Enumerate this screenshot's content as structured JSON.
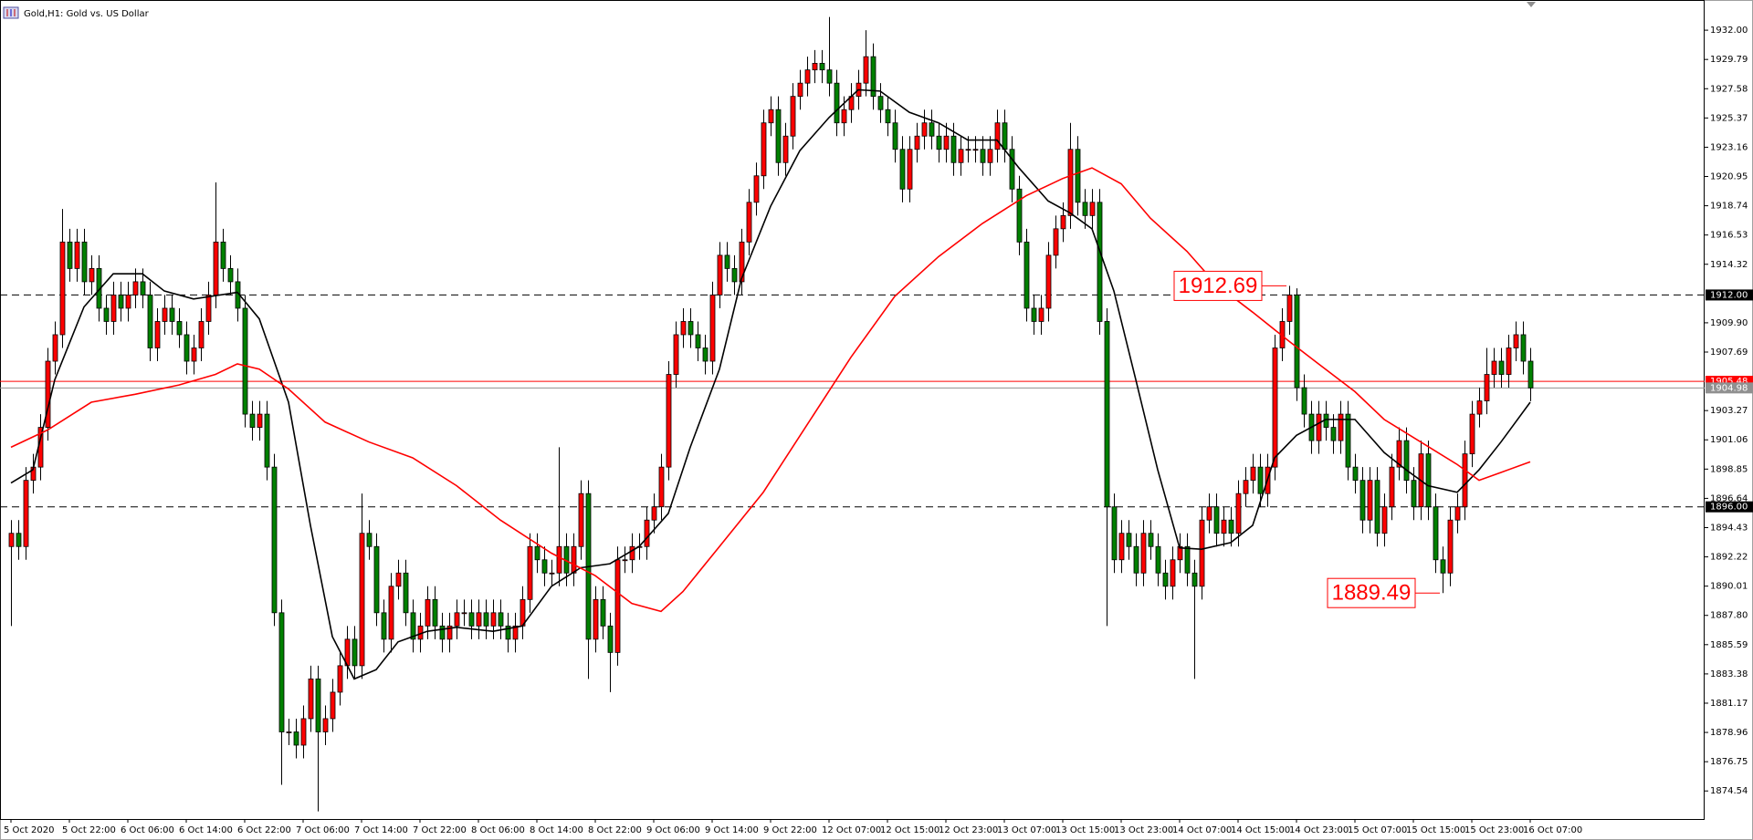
{
  "chart_data": {
    "type": "candlestick",
    "title": "Gold,H1:  Gold vs. US Dollar",
    "categories": [
      "5 Oct 2020",
      null,
      null,
      null,
      null,
      null,
      null,
      null,
      "5 Oct 22:00",
      null,
      null,
      null,
      null,
      null,
      null,
      null,
      "6 Oct 06:00",
      null,
      null,
      null,
      null,
      null,
      null,
      null,
      "6 Oct 14:00",
      null,
      null,
      null,
      null,
      null,
      null,
      null,
      "6 Oct 22:00",
      null,
      null,
      null,
      null,
      null,
      null,
      null,
      "7 Oct 06:00",
      null,
      null,
      null,
      null,
      null,
      null,
      null,
      "7 Oct 14:00",
      null,
      null,
      null,
      null,
      null,
      null,
      null,
      "7 Oct 22:00",
      null,
      null,
      null,
      null,
      null,
      null,
      null,
      "8 Oct 06:00",
      null,
      null,
      null,
      null,
      null,
      null,
      null,
      "8 Oct 14:00",
      null,
      null,
      null,
      null,
      null,
      null,
      null,
      "8 Oct 22:00",
      null,
      null,
      null,
      null,
      null,
      null,
      null,
      "9 Oct 06:00",
      null,
      null,
      null,
      null,
      null,
      null,
      null,
      "9 Oct 14:00",
      null,
      null,
      null,
      null,
      null,
      null,
      null,
      "9 Oct 22:00",
      null,
      null,
      null,
      null,
      null,
      null,
      null,
      "12 Oct 07:00",
      null,
      null,
      null,
      null,
      null,
      null,
      null,
      "12 Oct 15:00",
      null,
      null,
      null,
      null,
      null,
      null,
      null,
      "12 Oct 23:00",
      null,
      null,
      null,
      null,
      null,
      null,
      null,
      "13 Oct 07:00",
      null,
      null,
      null,
      null,
      null,
      null,
      null,
      "13 Oct 15:00",
      null,
      null,
      null,
      null,
      null,
      null,
      null,
      "13 Oct 23:00",
      null,
      null,
      null,
      null,
      null,
      null,
      null,
      "14 Oct 07:00",
      null,
      null,
      null,
      null,
      null,
      null,
      null,
      "14 Oct 15:00",
      null,
      null,
      null,
      null,
      null,
      null,
      null,
      "14 Oct 23:00",
      null,
      null,
      null,
      null,
      null,
      null,
      null,
      "15 Oct 07:00",
      null,
      null,
      null,
      null,
      null,
      null,
      null,
      "15 Oct 15:00",
      null,
      null,
      null,
      null,
      null,
      null,
      null,
      "15 Oct 23:00",
      null,
      null,
      null,
      null,
      null,
      null,
      null,
      "16 Oct 07:00"
    ],
    "open": [
      1893,
      1894,
      1893,
      1898,
      1899,
      1902,
      1907,
      1909,
      1916,
      1914,
      1916,
      1913,
      1914,
      1911,
      1910,
      1912,
      1911,
      1912,
      1913,
      1912,
      1908,
      1910,
      1911,
      1910,
      1909,
      1907,
      1908,
      1910,
      1912,
      1916,
      1914,
      1913,
      1911,
      1903,
      1902,
      1903,
      1899,
      1888,
      1879,
      1879,
      1878,
      1880,
      1883,
      1879,
      1880,
      1882,
      1884,
      1886,
      1884,
      1894,
      1893,
      1888,
      1886,
      1890,
      1891,
      1888,
      1886,
      1887,
      1889,
      1887,
      1886,
      1887,
      1888,
      1888,
      1887,
      1888,
      1887,
      1888,
      1887,
      1886,
      1887,
      1889,
      1893,
      1892,
      1891,
      1891,
      1893,
      1891,
      1893,
      1897,
      1886,
      1889,
      1887,
      1885,
      1892,
      1892,
      1893,
      1893,
      1895,
      1896,
      1899,
      1906,
      1909,
      1910,
      1909,
      1908,
      1907,
      1912,
      1915,
      1914,
      1913,
      1916,
      1919,
      1921,
      1925,
      1926,
      1922,
      1924,
      1927,
      1928,
      1929,
      1929.5,
      1929,
      1928,
      1925,
      1926,
      1927,
      1928,
      1930,
      1927,
      1926,
      1925,
      1923,
      1920,
      1923,
      1924,
      1925,
      1924,
      1923,
      1924,
      1922,
      1923,
      1923,
      1923,
      1922,
      1923,
      1925,
      1923,
      1920,
      1916,
      1911,
      1910,
      1911,
      1915,
      1917,
      1918,
      1923,
      1919,
      1918,
      1919,
      1910,
      1896,
      1892,
      1894,
      1893,
      1891,
      1894,
      1893,
      1891,
      1890,
      1892,
      1893,
      1891,
      1890,
      1895,
      1896,
      1894,
      1895,
      1894,
      1897,
      1898,
      1899,
      1897,
      1899,
      1908,
      1910,
      1912,
      1905,
      1903,
      1901,
      1903,
      1902,
      1901,
      1903,
      1899,
      1898,
      1895,
      1898,
      1894,
      1896,
      1899,
      1901,
      1898,
      1896,
      1900,
      1896,
      1892,
      1891,
      1895,
      1896,
      1900,
      1903,
      1904,
      1906,
      1907,
      1906,
      1908,
      1909,
      1907
    ],
    "high": [
      1895,
      1895,
      1899,
      1900,
      1903,
      1908,
      1910,
      1918.5,
      1917,
      1917,
      1917,
      1915,
      1915,
      1912,
      1913,
      1913,
      1913,
      1914,
      1914,
      1913,
      1911,
      1912,
      1912,
      1911,
      1910,
      1909,
      1911,
      1913,
      1920.5,
      1917,
      1915,
      1914,
      1912,
      1904,
      1904,
      1904,
      1900,
      1889,
      1880,
      1880,
      1881,
      1884,
      1884,
      1881,
      1883,
      1885,
      1887,
      1887,
      1897,
      1895,
      1894,
      1889,
      1891,
      1892,
      1892,
      1889,
      1888,
      1890,
      1890,
      1888,
      1888,
      1889,
      1889,
      1889,
      1889,
      1889,
      1889,
      1889,
      1888,
      1888,
      1890,
      1894,
      1894,
      1893,
      1892,
      1900.5,
      1894,
      1894,
      1898,
      1898,
      1890,
      1890,
      1888,
      1893,
      1893,
      1894,
      1894,
      1896,
      1897,
      1900,
      1907,
      1910,
      1911,
      1911,
      1910,
      1909,
      1913,
      1916,
      1916,
      1915,
      1917,
      1920,
      1922,
      1926,
      1927,
      1927,
      1925,
      1928,
      1929,
      1930,
      1930.5,
      1930.5,
      1933,
      1929,
      1927,
      1928,
      1929,
      1932,
      1931,
      1928,
      1927,
      1926,
      1924,
      1924,
      1925,
      1926,
      1926,
      1925,
      1925,
      1925,
      1924,
      1924,
      1924,
      1924,
      1924,
      1926,
      1926,
      1924,
      1921,
      1917,
      1912,
      1912,
      1916,
      1918,
      1919,
      1925,
      1924,
      1920,
      1920,
      1920,
      1911,
      1897,
      1895,
      1895,
      1894,
      1895,
      1895,
      1894,
      1892,
      1893,
      1894,
      1894,
      1892,
      1896,
      1897,
      1897,
      1896,
      1896,
      1898,
      1899,
      1900,
      1900,
      1900,
      1909,
      1911,
      1912.69,
      1912.5,
      1906,
      1904,
      1904,
      1904,
      1903,
      1904,
      1904,
      1900,
      1899,
      1899,
      1899,
      1897,
      1900,
      1902,
      1902,
      1899,
      1901,
      1901,
      1897,
      1893,
      1896,
      1897,
      1901,
      1904,
      1905,
      1908,
      1908,
      1908,
      1909,
      1910,
      1910,
      1908
    ],
    "low": [
      1887,
      1892,
      1892,
      1897,
      1898,
      1901,
      1906,
      1908,
      1913,
      1913,
      1912,
      1912,
      1910,
      1909,
      1909,
      1910,
      1910,
      1911,
      1911,
      1907,
      1907,
      1909,
      1909,
      1908,
      1906,
      1906,
      1907,
      1909,
      1911,
      1913,
      1912,
      1910,
      1902,
      1901,
      1901,
      1898,
      1887,
      1875,
      1878,
      1877,
      1877,
      1879,
      1873,
      1878,
      1879,
      1881,
      1883,
      1883,
      1883,
      1892,
      1887,
      1885,
      1885,
      1889,
      1887,
      1885,
      1885,
      1886,
      1886,
      1885,
      1885,
      1886,
      1887,
      1886,
      1886,
      1886,
      1886,
      1886,
      1885,
      1885,
      1886,
      1888,
      1891,
      1890,
      1890,
      1890,
      1890,
      1890,
      1892,
      1883,
      1885,
      1886,
      1882,
      1884,
      1891,
      1891,
      1892,
      1892,
      1894,
      1895,
      1898,
      1905,
      1908,
      1908,
      1907,
      1906,
      1906,
      1911,
      1913,
      1912,
      1912,
      1915,
      1918,
      1920,
      1924,
      1921,
      1921,
      1923,
      1926,
      1927,
      1928,
      1928,
      1927,
      1924,
      1924,
      1925,
      1926,
      1927,
      1926,
      1925,
      1924,
      1922,
      1919,
      1919,
      1922,
      1923,
      1923,
      1922,
      1922,
      1921,
      1921,
      1922,
      1922,
      1921,
      1921,
      1922,
      1922,
      1919,
      1915,
      1910,
      1909,
      1909,
      1910,
      1914,
      1916,
      1917,
      1918,
      1917,
      1917,
      1909,
      1887,
      1891,
      1891,
      1892,
      1890,
      1890,
      1892,
      1890,
      1889,
      1889,
      1891,
      1890,
      1883,
      1889,
      1894,
      1893,
      1893,
      1893,
      1893,
      1896,
      1897,
      1896,
      1896,
      1898,
      1907,
      1909,
      1904,
      1902,
      1900,
      1900,
      1901,
      1900,
      1900,
      1898,
      1897,
      1894,
      1894,
      1893,
      1893,
      1895,
      1898,
      1897,
      1895,
      1895,
      1895,
      1891,
      1889.49,
      1890,
      1894,
      1895,
      1899,
      1902,
      1903,
      1905,
      1905,
      1905,
      1907,
      1906,
      1903.98
    ],
    "close": [
      1894,
      1893,
      1898,
      1899,
      1902,
      1907,
      1909,
      1916,
      1914,
      1916,
      1913,
      1914,
      1911,
      1910,
      1912,
      1911,
      1912,
      1913,
      1912,
      1908,
      1910,
      1911,
      1910,
      1909,
      1907,
      1908,
      1910,
      1912,
      1916,
      1914,
      1913,
      1911,
      1903,
      1902,
      1903,
      1899,
      1888,
      1879,
      1879,
      1878,
      1880,
      1883,
      1879,
      1880,
      1882,
      1884,
      1886,
      1884,
      1894,
      1893,
      1888,
      1886,
      1890,
      1891,
      1888,
      1886,
      1887,
      1889,
      1887,
      1886,
      1887,
      1888,
      1888,
      1887,
      1888,
      1887,
      1888,
      1887,
      1886,
      1887,
      1889,
      1893,
      1892,
      1891,
      1891,
      1893,
      1891,
      1893,
      1897,
      1886,
      1889,
      1887,
      1885,
      1892,
      1892,
      1893,
      1893,
      1895,
      1896,
      1899,
      1906,
      1909,
      1910,
      1909,
      1908,
      1907,
      1912,
      1915,
      1914,
      1913,
      1916,
      1919,
      1921,
      1925,
      1926,
      1922,
      1924,
      1927,
      1928,
      1929,
      1929.5,
      1929,
      1928,
      1925,
      1926,
      1927,
      1928,
      1930,
      1927,
      1926,
      1925,
      1923,
      1920,
      1923,
      1924,
      1925,
      1924,
      1923,
      1924,
      1922,
      1923,
      1923,
      1923,
      1922,
      1923,
      1925,
      1923,
      1920,
      1916,
      1911,
      1910,
      1911,
      1915,
      1917,
      1918,
      1923,
      1919,
      1918,
      1919,
      1910,
      1896,
      1892,
      1894,
      1893,
      1891,
      1894,
      1893,
      1891,
      1890,
      1892,
      1893,
      1891,
      1890,
      1895,
      1896,
      1894,
      1895,
      1894,
      1897,
      1898,
      1899,
      1897,
      1899,
      1908,
      1910,
      1912,
      1905,
      1903,
      1901,
      1903,
      1902,
      1901,
      1903,
      1899,
      1898,
      1895,
      1898,
      1894,
      1896,
      1899,
      1901,
      1898,
      1896,
      1900,
      1896,
      1892,
      1891,
      1895,
      1896,
      1900,
      1903,
      1904,
      1906,
      1907,
      1906,
      1908,
      1909,
      1907,
      1904.98
    ],
    "up_color": "#ff0000",
    "down_color": "#008000",
    "ylim": [
      1872.42,
      1934.28
    ],
    "yticks": [
      {
        "value": 1932,
        "label": "1932.00"
      },
      1929.79,
      1927.58,
      1925.37,
      1923.16,
      1920.95,
      1918.74,
      1916.53,
      1914.32,
      {
        "value": 1909.9,
        "label": "1909.90"
      },
      1907.69,
      1903.27,
      1901.06,
      1898.85,
      1896.64,
      1894.43,
      1892.22,
      1890.01,
      {
        "value": 1887.8,
        "label": "1887.80"
      },
      1885.59,
      1883.38,
      1881.17,
      1878.96,
      1876.75,
      1874.54
    ],
    "grid": false,
    "lines": [
      {
        "color": "#000000",
        "x": [
          0,
          3,
          6,
          10,
          14,
          18,
          21,
          25,
          31,
          34,
          38,
          41,
          44,
          47,
          50,
          53,
          57,
          61,
          66,
          70,
          74,
          78,
          82,
          86,
          90,
          93,
          97,
          100,
          104,
          108,
          112,
          116,
          119,
          123,
          127,
          131,
          135,
          138,
          142,
          145,
          148,
          151,
          154,
          157,
          160,
          163,
          167,
          170,
          173,
          176,
          180,
          184,
          188,
          191,
          194,
          198,
          201,
          204,
          208
        ],
        "values": [
          1897.8,
          1898.8,
          1905.6,
          1911.1,
          1913.6,
          1913.6,
          1912.3,
          1911.7,
          1912.2,
          1910.2,
          1903.9,
          1894.6,
          1886.2,
          1883.0,
          1883.7,
          1885.8,
          1886.6,
          1886.9,
          1886.6,
          1887.0,
          1890.0,
          1891.4,
          1891.7,
          1893.0,
          1895.5,
          1900.5,
          1906.4,
          1913.2,
          1918.7,
          1922.9,
          1925.4,
          1927.5,
          1927.4,
          1925.8,
          1925.0,
          1923.7,
          1923.7,
          1921.6,
          1919.1,
          1918.2,
          1917.0,
          1912.3,
          1905.6,
          1898.8,
          1892.9,
          1892.8,
          1893.3,
          1894.6,
          1899.7,
          1901.4,
          1902.6,
          1902.6,
          1900.1,
          1898.8,
          1897.6,
          1897.1,
          1898.8,
          1900.9,
          1903.9
        ]
      },
      {
        "color": "#ff0000",
        "x": [
          0,
          5,
          11,
          17,
          23,
          28,
          31,
          34,
          38,
          43,
          49,
          55,
          61,
          67,
          74,
          80,
          85,
          89,
          92,
          97,
          103,
          109,
          115,
          121,
          127,
          133,
          139,
          144,
          148,
          152,
          156,
          161,
          165,
          170,
          175,
          179,
          184,
          188,
          193,
          198,
          201,
          204,
          208
        ],
        "values": [
          1900.5,
          1901.8,
          1903.9,
          1904.5,
          1905.2,
          1906.0,
          1906.8,
          1906.4,
          1904.9,
          1902.4,
          1900.9,
          1899.7,
          1897.6,
          1895.0,
          1892.5,
          1890.8,
          1888.7,
          1888.1,
          1889.6,
          1893.0,
          1897.1,
          1902.2,
          1907.3,
          1911.9,
          1914.9,
          1917.4,
          1919.5,
          1920.8,
          1921.6,
          1920.4,
          1917.8,
          1915.3,
          1912.8,
          1910.7,
          1908.5,
          1906.8,
          1904.7,
          1902.6,
          1900.9,
          1899.2,
          1898.0,
          1898.6,
          1899.4
        ]
      }
    ],
    "hlines": [
      {
        "value": 1912,
        "label": "1912.00",
        "color": "#000000",
        "dash": true
      },
      {
        "value": 1896,
        "label": "1896.00",
        "color": "#000000",
        "dash": true
      },
      {
        "value": 1905.48,
        "label": "1905.48",
        "color": "#ff0000",
        "dash": false
      },
      {
        "value": 1904.98,
        "label": "1904.98",
        "color": "#909090",
        "dash": false
      }
    ],
    "annotations": [
      {
        "value": 1912.69,
        "x": 175,
        "color": "#ff0000"
      },
      {
        "value": 1889.49,
        "x": 196,
        "color": "#ff0000"
      }
    ]
  }
}
